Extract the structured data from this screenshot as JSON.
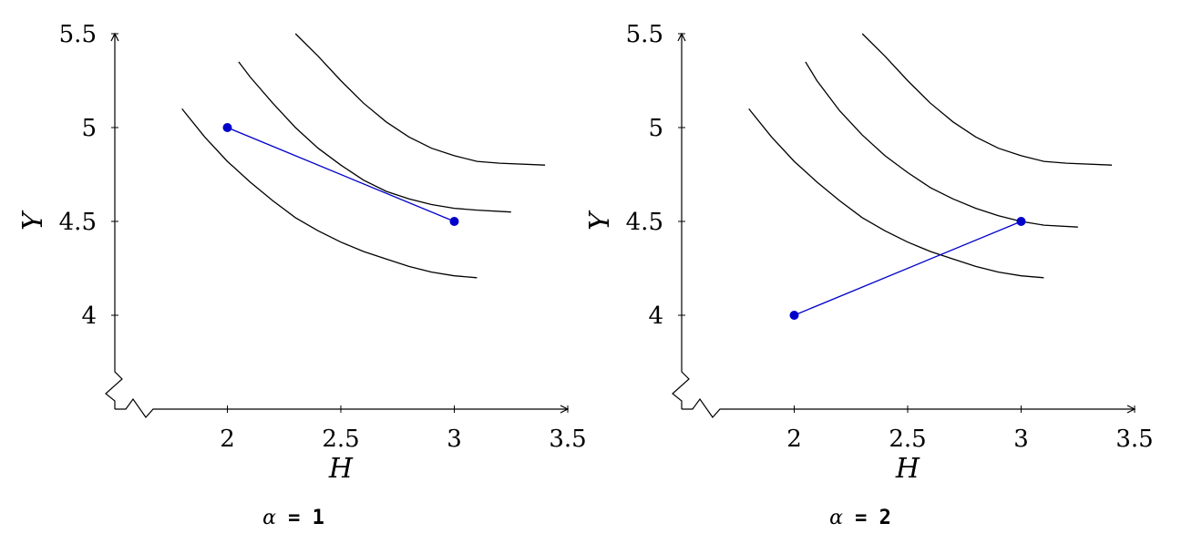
{
  "chart_data": [
    {
      "type": "line",
      "xlabel": "H",
      "ylabel": "Y",
      "xlim": [
        1.5,
        3.5
      ],
      "ylim": [
        3.5,
        5.5
      ],
      "x_ticks": [
        "2",
        "2.5",
        "3",
        "3.5"
      ],
      "y_ticks": [
        "4",
        "4.5",
        "5",
        "5.5"
      ],
      "x_tick_values": [
        2,
        2.5,
        3,
        3.5
      ],
      "y_tick_values": [
        4,
        4.5,
        5,
        5.5
      ],
      "axis_break": true,
      "grid": false,
      "curves": [
        {
          "color": "#000000",
          "points": [
            [
              1.8,
              5.1
            ],
            [
              1.9,
              4.95
            ],
            [
              2.0,
              4.82
            ],
            [
              2.1,
              4.71
            ],
            [
              2.2,
              4.61
            ],
            [
              2.3,
              4.52
            ],
            [
              2.4,
              4.45
            ],
            [
              2.5,
              4.39
            ],
            [
              2.6,
              4.34
            ],
            [
              2.7,
              4.3
            ],
            [
              2.8,
              4.26
            ],
            [
              2.9,
              4.23
            ],
            [
              3.0,
              4.21
            ],
            [
              3.1,
              4.2
            ]
          ]
        },
        {
          "color": "#000000",
          "points": [
            [
              2.05,
              5.35
            ],
            [
              2.1,
              5.27
            ],
            [
              2.2,
              5.13
            ],
            [
              2.3,
              5.0
            ],
            [
              2.4,
              4.89
            ],
            [
              2.5,
              4.8
            ],
            [
              2.6,
              4.72
            ],
            [
              2.7,
              4.66
            ],
            [
              2.8,
              4.62
            ],
            [
              2.9,
              4.59
            ],
            [
              3.0,
              4.57
            ],
            [
              3.1,
              4.56
            ],
            [
              3.25,
              4.55
            ]
          ]
        },
        {
          "color": "#000000",
          "points": [
            [
              2.3,
              5.5
            ],
            [
              2.4,
              5.38
            ],
            [
              2.5,
              5.25
            ],
            [
              2.6,
              5.13
            ],
            [
              2.7,
              5.03
            ],
            [
              2.8,
              4.95
            ],
            [
              2.9,
              4.89
            ],
            [
              3.0,
              4.85
            ],
            [
              3.1,
              4.82
            ],
            [
              3.2,
              4.81
            ],
            [
              3.4,
              4.8
            ]
          ]
        }
      ],
      "segment": {
        "color": "#0000cc",
        "points": [
          [
            2,
            5
          ],
          [
            3,
            4.5
          ]
        ]
      },
      "caption": {
        "symbol": "α",
        "text": " = 1"
      }
    },
    {
      "type": "line",
      "xlabel": "H",
      "ylabel": "Y",
      "xlim": [
        1.5,
        3.5
      ],
      "ylim": [
        3.5,
        5.5
      ],
      "x_ticks": [
        "2",
        "2.5",
        "3",
        "3.5"
      ],
      "y_ticks": [
        "4",
        "4.5",
        "5",
        "5.5"
      ],
      "x_tick_values": [
        2,
        2.5,
        3,
        3.5
      ],
      "y_tick_values": [
        4,
        4.5,
        5,
        5.5
      ],
      "axis_break": true,
      "grid": false,
      "curves": [
        {
          "color": "#000000",
          "points": [
            [
              1.8,
              5.1
            ],
            [
              1.9,
              4.95
            ],
            [
              2.0,
              4.82
            ],
            [
              2.1,
              4.71
            ],
            [
              2.2,
              4.61
            ],
            [
              2.3,
              4.52
            ],
            [
              2.4,
              4.45
            ],
            [
              2.5,
              4.39
            ],
            [
              2.6,
              4.34
            ],
            [
              2.7,
              4.3
            ],
            [
              2.8,
              4.26
            ],
            [
              2.9,
              4.23
            ],
            [
              3.0,
              4.21
            ],
            [
              3.1,
              4.2
            ]
          ]
        },
        {
          "color": "#000000",
          "points": [
            [
              2.05,
              5.35
            ],
            [
              2.1,
              5.25
            ],
            [
              2.2,
              5.09
            ],
            [
              2.3,
              4.96
            ],
            [
              2.4,
              4.85
            ],
            [
              2.5,
              4.76
            ],
            [
              2.6,
              4.68
            ],
            [
              2.7,
              4.62
            ],
            [
              2.8,
              4.57
            ],
            [
              2.9,
              4.53
            ],
            [
              3.0,
              4.5
            ],
            [
              3.1,
              4.48
            ],
            [
              3.25,
              4.47
            ]
          ]
        },
        {
          "color": "#000000",
          "points": [
            [
              2.3,
              5.5
            ],
            [
              2.4,
              5.38
            ],
            [
              2.5,
              5.25
            ],
            [
              2.6,
              5.13
            ],
            [
              2.7,
              5.03
            ],
            [
              2.8,
              4.95
            ],
            [
              2.9,
              4.89
            ],
            [
              3.0,
              4.85
            ],
            [
              3.1,
              4.82
            ],
            [
              3.2,
              4.81
            ],
            [
              3.4,
              4.8
            ]
          ]
        }
      ],
      "segment": {
        "color": "#0000cc",
        "points": [
          [
            2,
            4
          ],
          [
            3,
            4.5
          ]
        ]
      },
      "caption": {
        "symbol": "α",
        "text": " = 2"
      }
    }
  ]
}
